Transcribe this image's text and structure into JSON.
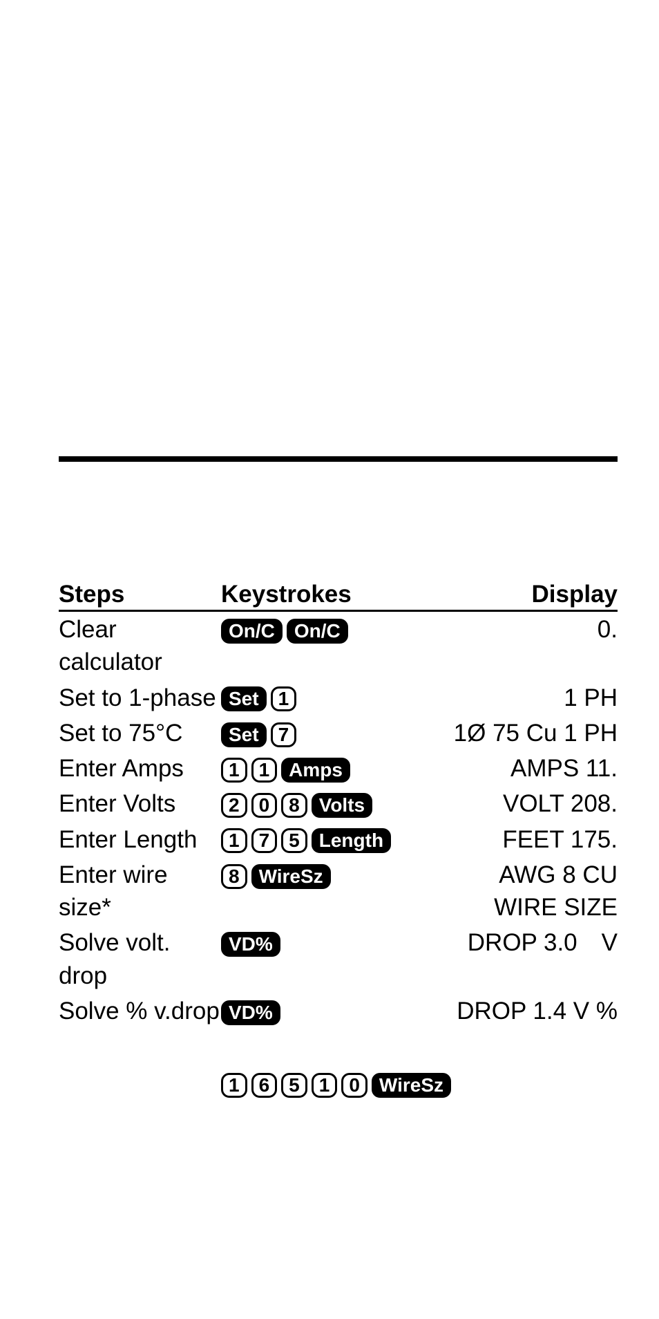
{
  "headers": {
    "steps": "Steps",
    "keystrokes": "Keystrokes",
    "display": "Display"
  },
  "rows": [
    {
      "step": "Clear calculator",
      "keys": [
        {
          "type": "fn",
          "label": "On/C"
        },
        {
          "type": "fn",
          "label": "On/C"
        }
      ],
      "display": "0."
    },
    {
      "step": "Set to 1-phase",
      "keys": [
        {
          "type": "fn",
          "label": "Set"
        },
        {
          "type": "num",
          "label": "1"
        }
      ],
      "display": "1 PH"
    },
    {
      "step": "Set to 75°C",
      "keys": [
        {
          "type": "fn",
          "label": "Set"
        },
        {
          "type": "num",
          "label": "7"
        }
      ],
      "display": "1Ø 75 Cu  1 PH"
    },
    {
      "step": "Enter Amps",
      "keys": [
        {
          "type": "num",
          "label": "1"
        },
        {
          "type": "num",
          "label": "1"
        },
        {
          "type": "fn",
          "label": "Amps"
        }
      ],
      "display": "AMPS 11."
    },
    {
      "step": "Enter Volts",
      "keys": [
        {
          "type": "num",
          "label": "2"
        },
        {
          "type": "num",
          "label": "0"
        },
        {
          "type": "num",
          "label": "8"
        },
        {
          "type": "fn",
          "label": "Volts"
        }
      ],
      "display": "VOLT 208."
    },
    {
      "step": "Enter Length",
      "keys": [
        {
          "type": "num",
          "label": "1"
        },
        {
          "type": "num",
          "label": "7"
        },
        {
          "type": "num",
          "label": "5"
        },
        {
          "type": "fn",
          "label": "Length"
        }
      ],
      "display": "FEET 175."
    },
    {
      "step": "Enter wire size*",
      "keys": [
        {
          "type": "num",
          "label": "8"
        },
        {
          "type": "fn",
          "label": "WireSz"
        }
      ],
      "display": "AWG 8 CU",
      "display2": "WIRE SIZE"
    },
    {
      "step": "Solve volt. drop",
      "keys": [
        {
          "type": "fn",
          "label": "VD%"
        }
      ],
      "display": "DROP 3.0 V"
    },
    {
      "step": "Solve % v.drop",
      "keys": [
        {
          "type": "fn",
          "label": "VD%"
        }
      ],
      "display": "DROP 1.4  V %"
    }
  ],
  "footnote_keys": [
    {
      "type": "num",
      "label": "1"
    },
    {
      "type": "num",
      "label": "6"
    },
    {
      "type": "num",
      "label": "5"
    },
    {
      "type": "num",
      "label": "1"
    },
    {
      "type": "num",
      "label": "0"
    },
    {
      "type": "fn",
      "label": "WireSz"
    }
  ]
}
